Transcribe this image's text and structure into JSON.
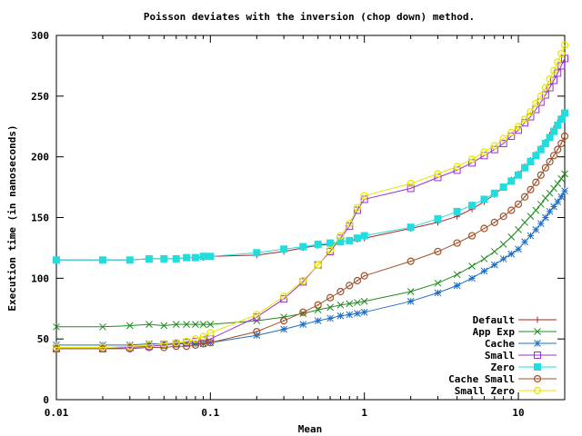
{
  "chart_data": {
    "type": "line",
    "title": "Poisson deviates with the inversion (chop down) method.",
    "xlabel": "Mean",
    "ylabel": "Execution time (in nanoseconds)",
    "xscale": "log",
    "xlim": [
      0.01,
      20
    ],
    "ylim": [
      0,
      300
    ],
    "xticks": [
      0.01,
      0.1,
      1,
      10
    ],
    "xtick_labels": [
      "0.01",
      "0.1",
      "1",
      "10"
    ],
    "yticks": [
      0,
      50,
      100,
      150,
      200,
      250,
      300
    ],
    "ytick_labels": [
      "0",
      "50",
      "100",
      "150",
      "200",
      "250",
      "300"
    ],
    "grid": false,
    "legend_position": "bottom-right",
    "series": [
      {
        "name": "Default",
        "color": "#b22222",
        "marker": "plus",
        "x": [
          0.01,
          0.02,
          0.03,
          0.04,
          0.05,
          0.06,
          0.07,
          0.08,
          0.09,
          0.1,
          0.2,
          0.3,
          0.4,
          0.5,
          0.6,
          0.7,
          0.8,
          0.9,
          1,
          2,
          3,
          4,
          5,
          6,
          7,
          8,
          9,
          10,
          11,
          12,
          13,
          14,
          15,
          16,
          17,
          18,
          19,
          20
        ],
        "y": [
          115,
          115,
          115,
          116,
          116,
          116,
          117,
          117,
          117,
          118,
          119,
          122,
          125,
          127,
          128,
          130,
          131,
          132,
          133,
          141,
          146,
          151,
          157,
          163,
          169,
          175,
          181,
          186,
          192,
          197,
          202,
          207,
          212,
          218,
          223,
          228,
          232,
          236
        ]
      },
      {
        "name": "App Exp",
        "color": "#228b22",
        "marker": "x",
        "x": [
          0.01,
          0.02,
          0.03,
          0.04,
          0.05,
          0.06,
          0.07,
          0.08,
          0.09,
          0.1,
          0.2,
          0.3,
          0.4,
          0.5,
          0.6,
          0.7,
          0.8,
          0.9,
          1,
          2,
          3,
          4,
          5,
          6,
          7,
          8,
          9,
          10,
          11,
          12,
          13,
          14,
          15,
          16,
          17,
          18,
          19,
          20
        ],
        "y": [
          60,
          60,
          61,
          62,
          61,
          62,
          62,
          62,
          62,
          62,
          65,
          68,
          71,
          74,
          76,
          78,
          79,
          80,
          81,
          89,
          96,
          103,
          110,
          116,
          122,
          128,
          134,
          140,
          146,
          151,
          156,
          161,
          166,
          170,
          174,
          178,
          182,
          186
        ]
      },
      {
        "name": "Cache",
        "color": "#1e6fc4",
        "marker": "star",
        "x": [
          0.01,
          0.02,
          0.03,
          0.04,
          0.05,
          0.06,
          0.07,
          0.08,
          0.09,
          0.1,
          0.2,
          0.3,
          0.4,
          0.5,
          0.6,
          0.7,
          0.8,
          0.9,
          1,
          2,
          3,
          4,
          5,
          6,
          7,
          8,
          9,
          10,
          11,
          12,
          13,
          14,
          15,
          16,
          17,
          18,
          19,
          20
        ],
        "y": [
          45,
          45,
          45,
          46,
          46,
          46,
          46,
          46,
          46,
          47,
          53,
          58,
          62,
          65,
          67,
          69,
          70,
          71,
          72,
          81,
          88,
          94,
          100,
          106,
          111,
          116,
          120,
          124,
          130,
          135,
          140,
          145,
          150,
          155,
          159,
          163,
          167,
          172
        ]
      },
      {
        "name": "Small",
        "color": "#9932cc",
        "marker": "square-open",
        "x": [
          0.01,
          0.02,
          0.03,
          0.04,
          0.05,
          0.06,
          0.07,
          0.08,
          0.09,
          0.1,
          0.2,
          0.3,
          0.4,
          0.5,
          0.6,
          0.7,
          0.8,
          0.9,
          1,
          2,
          3,
          4,
          5,
          6,
          7,
          8,
          9,
          10,
          11,
          12,
          13,
          14,
          15,
          16,
          17,
          18,
          19,
          20
        ],
        "y": [
          42,
          42,
          43,
          44,
          45,
          46,
          47,
          48,
          49,
          50,
          68,
          83,
          97,
          111,
          122,
          133,
          143,
          156,
          165,
          174,
          183,
          189,
          195,
          201,
          206,
          211,
          217,
          222,
          228,
          233,
          239,
          245,
          251,
          257,
          263,
          269,
          275,
          281
        ]
      },
      {
        "name": "Zero",
        "color": "#22dddd",
        "marker": "square-filled",
        "x": [
          0.01,
          0.02,
          0.03,
          0.04,
          0.05,
          0.06,
          0.07,
          0.08,
          0.09,
          0.1,
          0.2,
          0.3,
          0.4,
          0.5,
          0.6,
          0.7,
          0.8,
          0.9,
          1,
          2,
          3,
          4,
          5,
          6,
          7,
          8,
          9,
          10,
          11,
          12,
          13,
          14,
          15,
          16,
          17,
          18,
          19,
          20
        ],
        "y": [
          115,
          115,
          115,
          116,
          116,
          116,
          117,
          117,
          118,
          118,
          121,
          124,
          126,
          128,
          129,
          130,
          131,
          133,
          135,
          142,
          149,
          155,
          160,
          165,
          170,
          175,
          180,
          185,
          191,
          196,
          201,
          206,
          211,
          216,
          221,
          226,
          231,
          236
        ]
      },
      {
        "name": "Cache Small",
        "color": "#a0522d",
        "marker": "circle-dot",
        "x": [
          0.01,
          0.02,
          0.03,
          0.04,
          0.05,
          0.06,
          0.07,
          0.08,
          0.09,
          0.1,
          0.2,
          0.3,
          0.4,
          0.5,
          0.6,
          0.7,
          0.8,
          0.9,
          1,
          2,
          3,
          4,
          5,
          6,
          7,
          8,
          9,
          10,
          11,
          12,
          13,
          14,
          15,
          16,
          17,
          18,
          19,
          20
        ],
        "y": [
          42,
          42,
          42,
          43,
          43,
          44,
          44,
          45,
          46,
          47,
          56,
          65,
          72,
          78,
          84,
          89,
          94,
          98,
          102,
          114,
          122,
          129,
          135,
          141,
          146,
          151,
          156,
          161,
          167,
          173,
          179,
          185,
          191,
          196,
          201,
          206,
          211,
          217
        ]
      },
      {
        "name": "Small Zero",
        "color": "#e6e600",
        "marker": "circle-open",
        "x": [
          0.01,
          0.02,
          0.03,
          0.04,
          0.05,
          0.06,
          0.07,
          0.08,
          0.09,
          0.1,
          0.2,
          0.3,
          0.4,
          0.5,
          0.6,
          0.7,
          0.8,
          0.9,
          1,
          2,
          3,
          4,
          5,
          6,
          7,
          8,
          9,
          10,
          11,
          12,
          13,
          14,
          15,
          16,
          17,
          18,
          19,
          20
        ],
        "y": [
          43,
          43,
          44,
          45,
          46,
          47,
          48,
          50,
          52,
          55,
          70,
          85,
          98,
          111,
          123,
          135,
          145,
          158,
          168,
          178,
          186,
          192,
          198,
          204,
          209,
          215,
          220,
          225,
          231,
          237,
          244,
          250,
          257,
          264,
          271,
          278,
          285,
          292
        ]
      }
    ]
  }
}
